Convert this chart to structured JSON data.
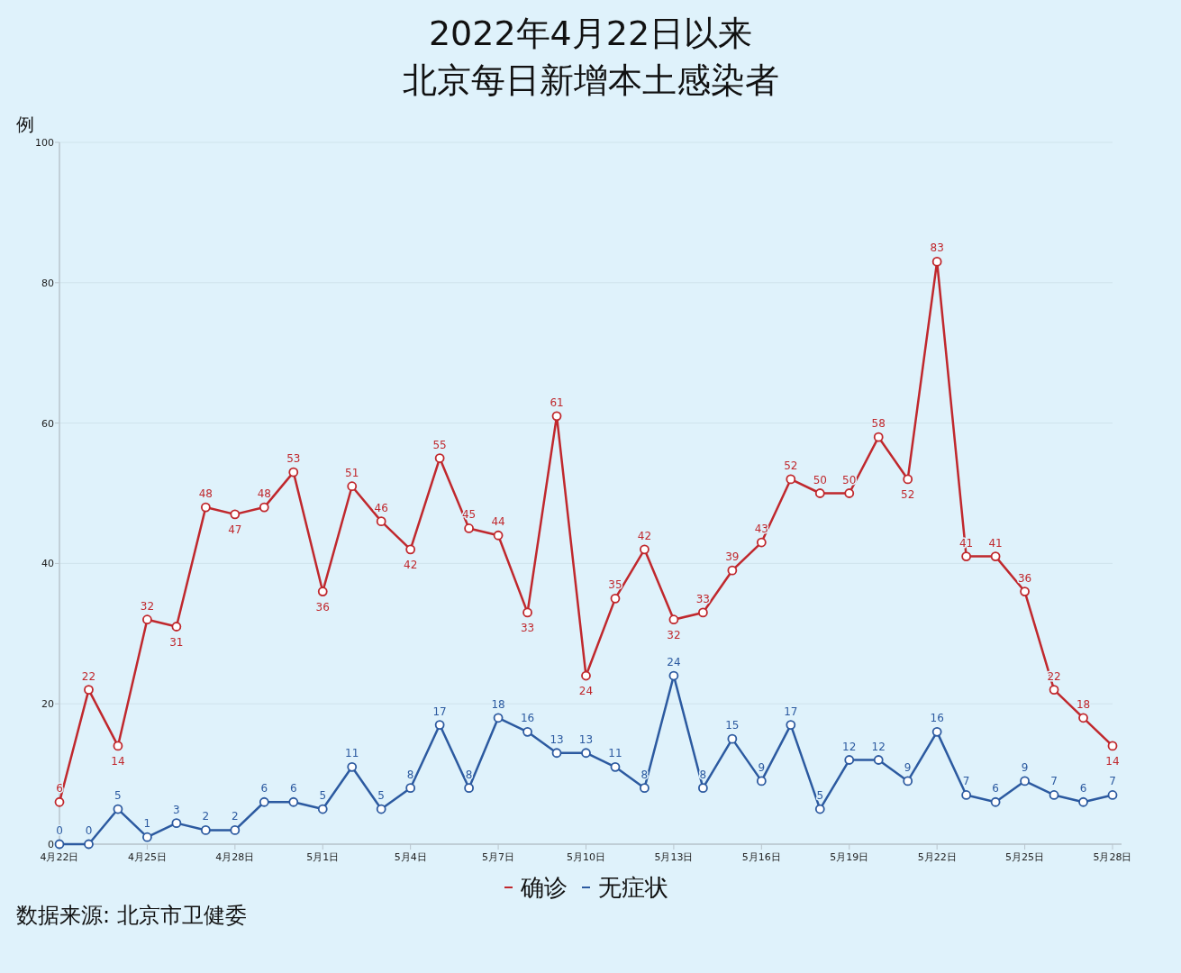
{
  "chart_data": {
    "type": "line",
    "title": "2022年4月22日以来",
    "subtitle": "北京每日新增本土感染者",
    "ylabel": "例",
    "categories": [
      "4月22日",
      null,
      null,
      "4月25日",
      null,
      null,
      "4月28日",
      null,
      null,
      "5月1日",
      null,
      null,
      "5月4日",
      null,
      null,
      "5月7日",
      null,
      null,
      "5月10日",
      null,
      null,
      "5月13日",
      null,
      null,
      "5月16日",
      null,
      null,
      "5月19日",
      null,
      null,
      "5月22日",
      null,
      null,
      "5月25日",
      null,
      null,
      "5月28日"
    ],
    "series": [
      {
        "name": "确诊",
        "color": "#c0282d",
        "values": [
          6,
          22,
          14,
          32,
          31,
          48,
          47,
          48,
          53,
          36,
          51,
          46,
          42,
          55,
          45,
          44,
          33,
          61,
          24,
          35,
          42,
          32,
          33,
          39,
          43,
          52,
          50,
          50,
          58,
          52,
          83,
          41,
          41,
          36,
          22,
          18,
          14
        ]
      },
      {
        "name": "无症状",
        "color": "#2c5aa0",
        "values": [
          0,
          0,
          5,
          1,
          3,
          2,
          2,
          6,
          6,
          5,
          11,
          5,
          8,
          17,
          8,
          18,
          16,
          13,
          13,
          11,
          8,
          24,
          8,
          15,
          9,
          17,
          5,
          12,
          12,
          9,
          16,
          7,
          6,
          9,
          7,
          6,
          7
        ]
      }
    ],
    "ylim": [
      0,
      100
    ],
    "yticks": [
      0,
      20,
      40,
      60,
      80,
      100
    ],
    "grid": "y",
    "marker": "circle",
    "data_labels": true,
    "legend": "bottom",
    "annotations": [
      "数据来源: 北京市卫健委"
    ]
  }
}
